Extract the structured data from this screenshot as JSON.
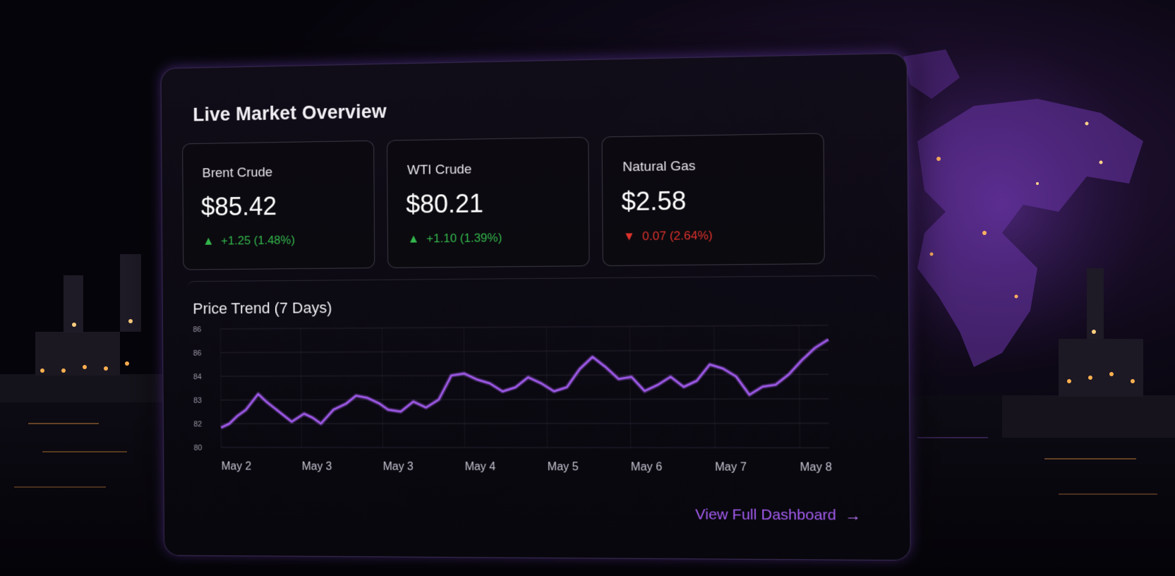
{
  "panel": {
    "title": "Live Market Overview"
  },
  "cards": [
    {
      "name": "Brent Crude",
      "price": "$85.42",
      "change": "+1.25 (1.48%)",
      "direction": "up",
      "arrow_icon": "up-arrow-icon"
    },
    {
      "name": "WTI Crude",
      "price": "$80.21",
      "change": "+1.10 (1.39%)",
      "direction": "up",
      "arrow_icon": "up-arrow-icon"
    },
    {
      "name": "Natural Gas",
      "price": "$2.58",
      "change": "0.07 (2.64%)",
      "direction": "down",
      "arrow_icon": "down-arrow-icon"
    }
  ],
  "chart": {
    "title": "Price Trend (7 Days)",
    "link_label": "View Full Dashboard",
    "link_icon": "arrow-right-icon"
  },
  "chart_data": {
    "type": "line",
    "title": "Price Trend (7 Days)",
    "xlabel": "",
    "ylabel": "",
    "x_ticks": [
      "May 2",
      "May 3",
      "May 3",
      "May 4",
      "May 5",
      "May 6",
      "May 7",
      "May 8"
    ],
    "y_ticks": [
      "80",
      "82",
      "83",
      "84",
      "86",
      "86"
    ],
    "ylim": [
      80,
      86
    ],
    "grid": true,
    "series": [
      {
        "color": "#a45cf0",
        "x": [
          0,
          0.1,
          0.2,
          0.3,
          0.45,
          0.55,
          0.7,
          0.85,
          1.0,
          1.1,
          1.2,
          1.35,
          1.5,
          1.62,
          1.75,
          1.9,
          2.0,
          2.15,
          2.3,
          2.45,
          2.6,
          2.75,
          2.9,
          3.05,
          3.2,
          3.35,
          3.5,
          3.65,
          3.8,
          3.95,
          4.1,
          4.25,
          4.4,
          4.55,
          4.7,
          4.85,
          5.0,
          5.15,
          5.3,
          5.45,
          5.6,
          5.75,
          5.9,
          6.05,
          6.2,
          6.35,
          6.5,
          6.65,
          6.8,
          6.95,
          7.1
        ],
        "y": [
          81.0,
          81.2,
          81.6,
          81.9,
          82.7,
          82.3,
          81.8,
          81.3,
          81.7,
          81.5,
          81.2,
          81.9,
          82.2,
          82.6,
          82.5,
          82.2,
          81.9,
          81.8,
          82.3,
          82.0,
          82.4,
          83.6,
          83.7,
          83.4,
          83.2,
          82.8,
          83.0,
          83.5,
          83.2,
          82.8,
          83.0,
          83.9,
          84.5,
          84.0,
          83.4,
          83.5,
          82.8,
          83.1,
          83.5,
          83.0,
          83.3,
          84.1,
          83.9,
          83.5,
          82.6,
          83.0,
          83.1,
          83.6,
          84.3,
          84.9,
          85.3
        ]
      }
    ]
  }
}
